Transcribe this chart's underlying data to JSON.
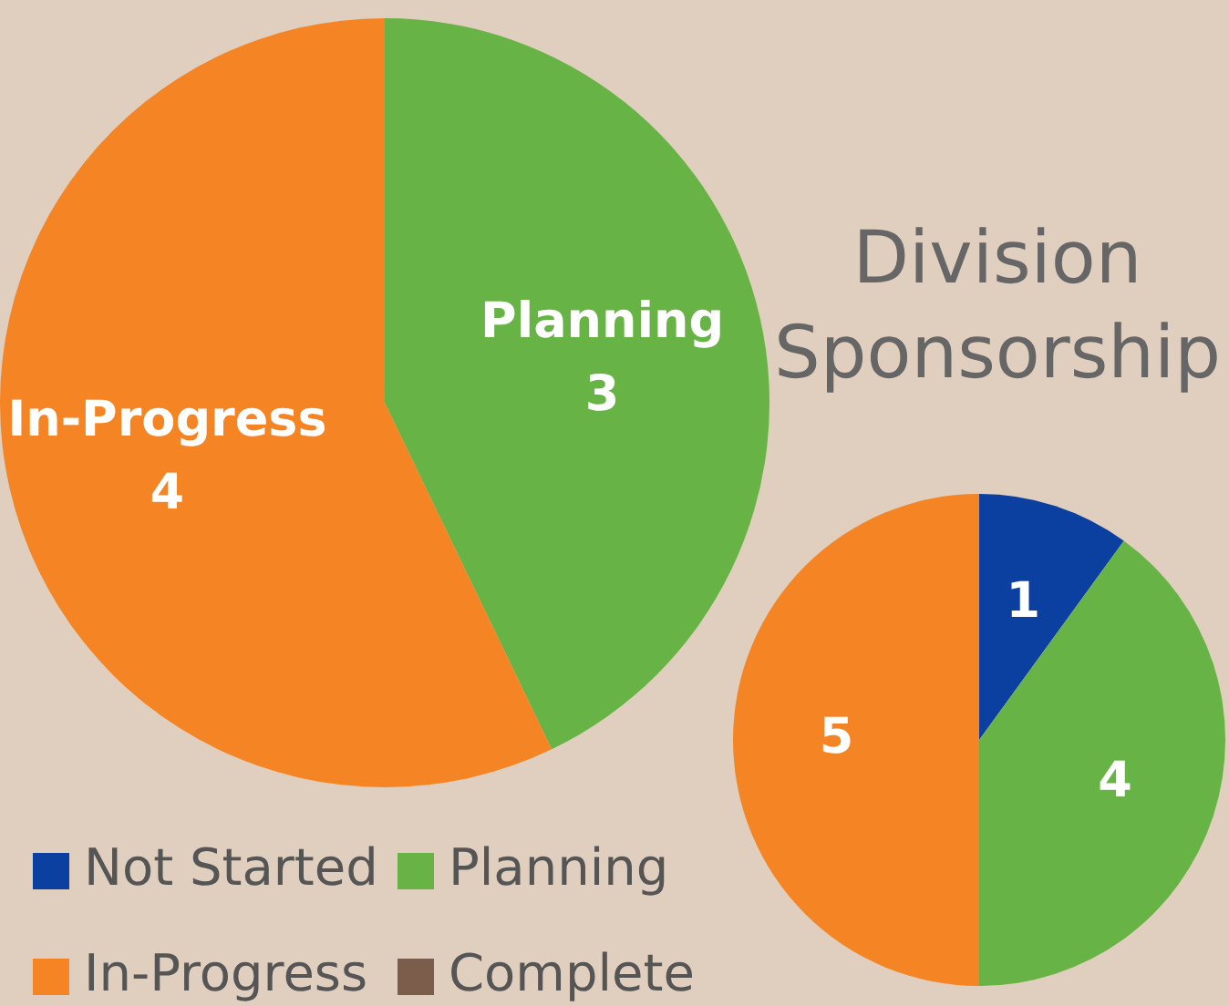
{
  "chart_data": [
    {
      "type": "pie",
      "categories": [
        "Planning",
        "In-Progress"
      ],
      "values": [
        3,
        4
      ],
      "colors": [
        "#68b345",
        "#f58524"
      ],
      "data_labels": true
    },
    {
      "type": "pie",
      "title": "Division Sponsorship",
      "categories": [
        "Not Started",
        "Planning",
        "In-Progress",
        "Complete"
      ],
      "values": [
        1,
        4,
        5,
        0
      ],
      "colors": [
        "#0b3fa0",
        "#68b345",
        "#f58524",
        "#7a5e4b"
      ],
      "data_labels": true,
      "legend": "bottom left"
    }
  ]
}
